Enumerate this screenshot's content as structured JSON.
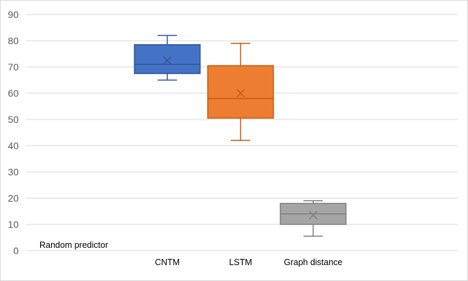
{
  "chart_data": {
    "type": "box",
    "categories": [
      "CNTM",
      "LSTM",
      "Graph distance"
    ],
    "ylim": [
      0,
      90
    ],
    "yticks": [
      0,
      10,
      20,
      30,
      40,
      50,
      60,
      70,
      80,
      90
    ],
    "grid": true,
    "annotation": "Random predictor",
    "series": [
      {
        "category": "CNTM",
        "min": 65,
        "q1": 67.5,
        "median": 71,
        "q3": 78.5,
        "max": 82,
        "mean": 72.5,
        "color": "#4472c4",
        "edge": "#2f5597"
      },
      {
        "category": "LSTM",
        "min": 42,
        "q1": 50.5,
        "median": 58,
        "q3": 70.5,
        "max": 79,
        "mean": 60,
        "color": "#ed7d31",
        "edge": "#c55a11"
      },
      {
        "category": "Graph distance",
        "min": 5.5,
        "q1": 10,
        "median": 14,
        "q3": 18,
        "max": 19,
        "mean": 13.5,
        "color": "#a5a5a5",
        "edge": "#7f7f7f"
      }
    ]
  }
}
